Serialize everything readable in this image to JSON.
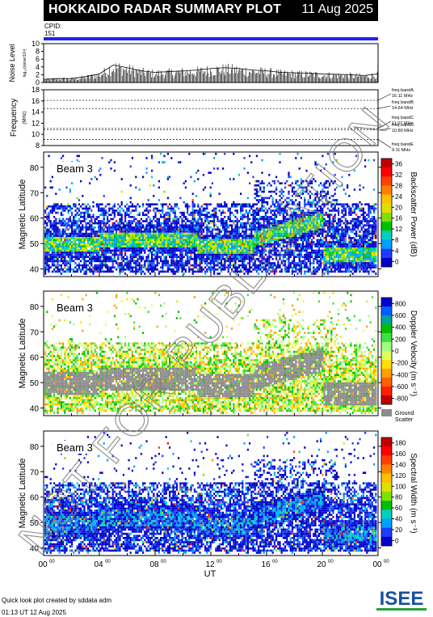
{
  "header": {
    "title": "HOKKAIDO RADAR SUMMARY PLOT",
    "date": "11 Aug 2025"
  },
  "cpid": {
    "label": "CPID:",
    "value": "151"
  },
  "colors": {
    "cpid_bar": "#2020ff",
    "ground_scatter": "#8c8c8c"
  },
  "chart_data": [
    {
      "type": "area",
      "id": "noise",
      "ylabel": "Noise Level",
      "ylabel2": "log₁₀(noise/10⁶)",
      "ylim": [
        0,
        10
      ],
      "yticks": [
        "0",
        "2",
        "4",
        "6",
        "8",
        "10"
      ],
      "x": [
        0,
        1,
        2,
        3,
        4,
        5,
        6,
        7,
        8,
        9,
        10,
        11,
        12,
        13,
        14,
        15,
        16,
        17,
        18,
        19,
        20,
        21,
        22,
        23,
        24
      ],
      "values": [
        0.8,
        1.0,
        1.0,
        1.5,
        2.2,
        4.5,
        3.8,
        3.0,
        2.6,
        2.8,
        3.0,
        3.2,
        3.6,
        3.8,
        3.6,
        3.2,
        3.0,
        2.6,
        2.5,
        2.4,
        2.2,
        2.1,
        2.0,
        1.8,
        2.2
      ]
    },
    {
      "type": "line",
      "id": "frequency",
      "ylabel": "Frequency",
      "ylabel2": "(MHz)",
      "ylim": [
        8,
        18
      ],
      "yticks": [
        "8",
        "10",
        "12",
        "14",
        "16",
        "18"
      ],
      "bands": [
        {
          "freq": 16.11,
          "label1": "freq bandA",
          "label2": "16.11 MHz"
        },
        {
          "freq": 14.64,
          "label1": "freq bandB",
          "label2": "14.64 MHz"
        },
        {
          "freq": 11.07,
          "label1": "freq bandC",
          "label2": "11.07 MHz"
        },
        {
          "freq": 10.8,
          "label1": "freq bandD",
          "label2": "10.80 MHz"
        },
        {
          "freq": 9.11,
          "label1": "freq bandE",
          "label2": "9.11 MHz"
        }
      ]
    },
    {
      "type": "heatmap",
      "id": "power",
      "beam": "Beam  3",
      "ylabel": "Magnetic Latitude",
      "ylim": [
        37,
        86
      ],
      "yticks": [
        "40",
        "50",
        "60",
        "70",
        "80"
      ],
      "colorbar": {
        "label": "Backscatter Power (dB)",
        "ticks": [
          "0",
          "4",
          "8",
          "12",
          "16",
          "20",
          "24",
          "28",
          "32",
          "36"
        ],
        "colors": [
          "#0000c8",
          "#1e3cff",
          "#00a0ff",
          "#00d0c0",
          "#00c000",
          "#80e000",
          "#e0e000",
          "#ffc000",
          "#ff8000",
          "#ff4000",
          "#ff0000",
          "#c00000"
        ]
      }
    },
    {
      "type": "heatmap",
      "id": "velocity",
      "beam": "Beam  3",
      "ylabel": "Magnetic Latitude",
      "ylim": [
        37,
        86
      ],
      "yticks": [
        "40",
        "50",
        "60",
        "70",
        "80"
      ],
      "colorbar": {
        "label": "Doppler Velocity (m s⁻¹)",
        "ticks": [
          "-800",
          "-600",
          "-400",
          "-200",
          "0",
          "200",
          "400",
          "600",
          "800"
        ],
        "colors": [
          "#c00000",
          "#ff2000",
          "#ff6000",
          "#ffa000",
          "#ffe000",
          "#e0ff60",
          "#a0ff80",
          "#40e040",
          "#00c000",
          "#00a0a0",
          "#0060ff",
          "#0000d0"
        ],
        "gs_label1": "Ground",
        "gs_label2": "Scatter"
      }
    },
    {
      "type": "heatmap",
      "id": "width",
      "beam": "Beam  3",
      "ylabel": "Magnetic Latitude",
      "ylim": [
        37,
        86
      ],
      "yticks": [
        "40",
        "50",
        "60",
        "70",
        "80"
      ],
      "colorbar": {
        "label": "Spectral Width (m s⁻¹)",
        "ticks": [
          "0",
          "20",
          "40",
          "60",
          "80",
          "100",
          "120",
          "140",
          "160",
          "180"
        ],
        "colors": [
          "#0000c8",
          "#1e3cff",
          "#00a0ff",
          "#00d0c0",
          "#00c000",
          "#80e000",
          "#e0e000",
          "#ffc000",
          "#ff8000",
          "#ff4000",
          "#ff0000",
          "#c00000"
        ]
      },
      "xlabel": "UT",
      "xticks": [
        "00",
        "04",
        "08",
        "12",
        "16",
        "20",
        "00"
      ],
      "xtick_sup": "00"
    }
  ],
  "footer": {
    "line1": "Quick look plot created by sddata adm",
    "line2": "01:13 UT 12 Aug 2025"
  },
  "logo": {
    "text": "ISEE"
  },
  "watermark": {
    "text": "NOT FOR PUBLICATION"
  }
}
